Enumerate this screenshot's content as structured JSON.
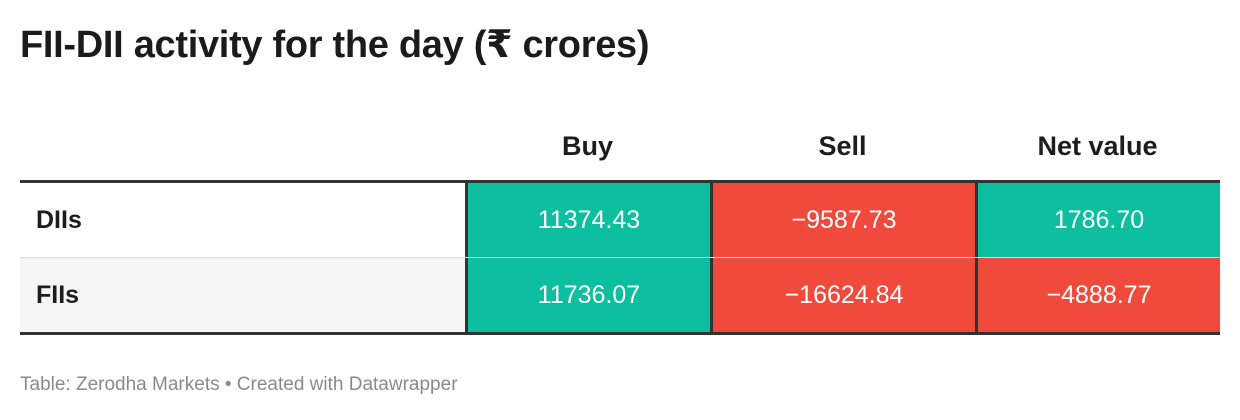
{
  "title": "FII-DII activity for the day (₹ crores)",
  "source": "Table: Zerodha Markets • Created with Datawrapper",
  "colors": {
    "positive": "#0dbf9f",
    "negative": "#ef4a3c"
  },
  "chart_data": {
    "type": "table",
    "columns": [
      "Buy",
      "Sell",
      "Net value"
    ],
    "rows": [
      {
        "label": "DIIs",
        "values": [
          "11374.43",
          "−9587.73",
          "1786.70"
        ],
        "signs": [
          "positive",
          "negative",
          "positive"
        ]
      },
      {
        "label": "FIIs",
        "values": [
          "11736.07",
          "−16624.84",
          "−4888.77"
        ],
        "signs": [
          "positive",
          "negative",
          "negative"
        ]
      }
    ]
  }
}
